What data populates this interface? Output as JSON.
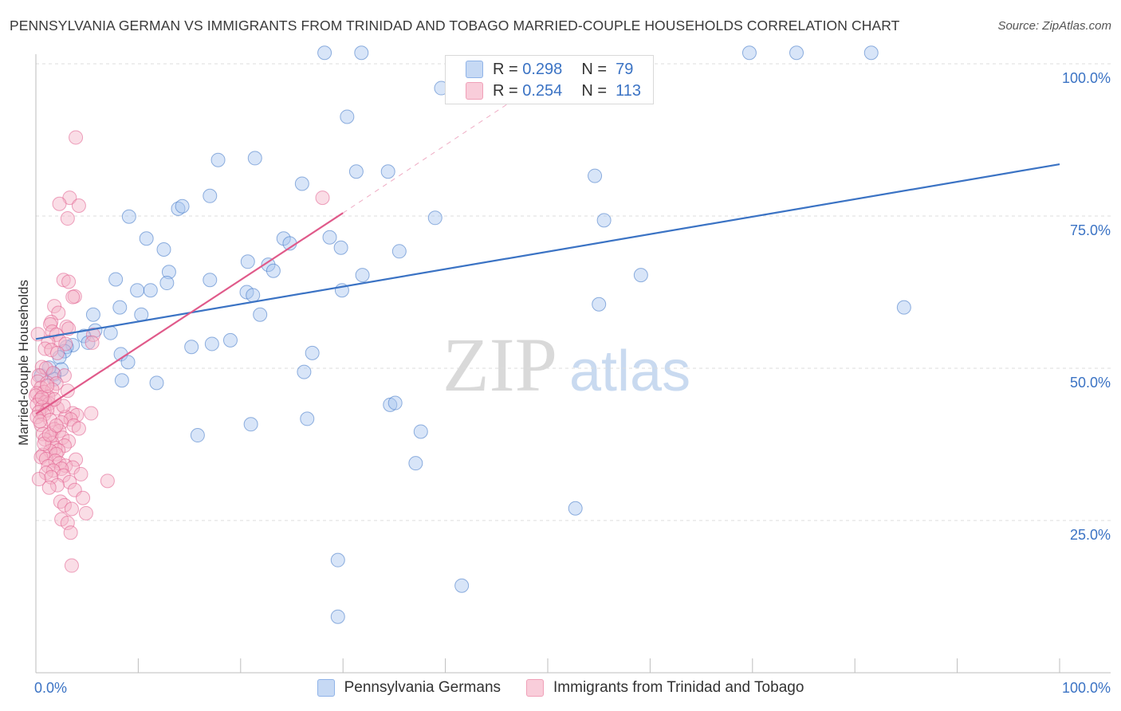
{
  "header": {
    "title": "PENNSYLVANIA GERMAN VS IMMIGRANTS FROM TRINIDAD AND TOBAGO MARRIED-COUPLE HOUSEHOLDS CORRELATION CHART",
    "source": "Source: ZipAtlas.com"
  },
  "watermark": {
    "part1": "ZIP",
    "part2": "atlas"
  },
  "legend": {
    "rows": [
      {
        "r_label": "R =",
        "r_value": "0.298",
        "n_label": "N =",
        "n_value": "79",
        "color": "#8fb3e8"
      },
      {
        "r_label": "R =",
        "r_value": "0.254",
        "n_label": "N =",
        "n_value": "113",
        "color": "#f0a0b8"
      }
    ]
  },
  "bottom_legend": {
    "items": [
      {
        "label": "Pennsylvania Germans",
        "color": "#8fb3e8"
      },
      {
        "label": "Immigrants from Trinidad and Tobago",
        "color": "#f0a0b8"
      }
    ]
  },
  "chart_data": {
    "type": "scatter",
    "title": "PENNSYLVANIA GERMAN VS IMMIGRANTS FROM TRINIDAD AND TOBAGO MARRIED-COUPLE HOUSEHOLDS CORRELATION CHART",
    "xlabel": "",
    "ylabel": "Married-couple Households",
    "xlim": [
      0,
      100
    ],
    "ylim": [
      0,
      100
    ],
    "x_tick_labels": [
      "0.0%",
      "100.0%"
    ],
    "y_tick_labels": [
      "100.0%",
      "75.0%",
      "50.0%",
      "25.0%"
    ],
    "y_tick_values": [
      100,
      75,
      50,
      25
    ],
    "grid": true,
    "series": [
      {
        "name": "Pennsylvania Germans",
        "color": "#3b73c4",
        "fill": "#a9c6ef",
        "trend": {
          "x0": 0,
          "y0": 54.8,
          "x1": 100,
          "y1": 83.5
        },
        "points": [
          [
            28.2,
            101.8
          ],
          [
            31.8,
            101.8
          ],
          [
            69.7,
            101.8
          ],
          [
            74.3,
            101.8
          ],
          [
            81.6,
            101.8
          ],
          [
            30.4,
            91.3
          ],
          [
            17.8,
            84.2
          ],
          [
            21.4,
            84.5
          ],
          [
            31.3,
            82.3
          ],
          [
            34.4,
            82.3
          ],
          [
            26.0,
            80.3
          ],
          [
            54.6,
            81.6
          ],
          [
            17.0,
            78.3
          ],
          [
            13.9,
            76.2
          ],
          [
            14.3,
            76.6
          ],
          [
            9.1,
            74.9
          ],
          [
            39.0,
            74.7
          ],
          [
            55.5,
            74.3
          ],
          [
            10.8,
            71.3
          ],
          [
            28.7,
            71.5
          ],
          [
            24.2,
            71.3
          ],
          [
            24.8,
            70.5
          ],
          [
            12.5,
            69.5
          ],
          [
            29.8,
            69.8
          ],
          [
            35.5,
            69.2
          ],
          [
            20.7,
            67.5
          ],
          [
            22.7,
            67.0
          ],
          [
            13.0,
            65.8
          ],
          [
            23.2,
            66.0
          ],
          [
            31.9,
            65.3
          ],
          [
            7.8,
            64.6
          ],
          [
            17.0,
            64.5
          ],
          [
            12.8,
            64.0
          ],
          [
            9.9,
            62.8
          ],
          [
            11.2,
            62.8
          ],
          [
            29.9,
            62.8
          ],
          [
            20.6,
            62.5
          ],
          [
            21.2,
            62.0
          ],
          [
            59.1,
            65.3
          ],
          [
            55.0,
            60.5
          ],
          [
            8.2,
            60.0
          ],
          [
            84.8,
            60.0
          ],
          [
            5.6,
            58.8
          ],
          [
            10.3,
            58.8
          ],
          [
            21.9,
            58.8
          ],
          [
            5.8,
            56.2
          ],
          [
            7.3,
            55.8
          ],
          [
            4.7,
            55.3
          ],
          [
            5.1,
            54.2
          ],
          [
            3.6,
            53.8
          ],
          [
            19.0,
            54.6
          ],
          [
            3.0,
            53.5
          ],
          [
            2.8,
            52.8
          ],
          [
            15.2,
            53.5
          ],
          [
            17.2,
            54.0
          ],
          [
            2.3,
            51.8
          ],
          [
            8.3,
            52.3
          ],
          [
            27.0,
            52.5
          ],
          [
            9.0,
            51.0
          ],
          [
            26.2,
            49.4
          ],
          [
            2.5,
            49.8
          ],
          [
            1.8,
            49.0
          ],
          [
            0.5,
            48.8
          ],
          [
            1.8,
            48.2
          ],
          [
            11.8,
            47.6
          ],
          [
            34.6,
            44.0
          ],
          [
            35.1,
            44.3
          ],
          [
            15.8,
            39.0
          ],
          [
            21.0,
            40.8
          ],
          [
            37.6,
            39.6
          ],
          [
            37.1,
            34.4
          ],
          [
            52.7,
            27.0
          ],
          [
            29.5,
            18.5
          ],
          [
            41.6,
            14.3
          ],
          [
            29.5,
            9.2
          ],
          [
            39.6,
            96.0
          ],
          [
            26.5,
            41.7
          ],
          [
            8.4,
            48.0
          ],
          [
            1.3,
            50.1
          ]
        ]
      },
      {
        "name": "Immigrants from Trinidad and Tobago",
        "color": "#e05a8a",
        "fill": "#f5b3c8",
        "trend": {
          "x0": 0,
          "y0": 42.5,
          "x1": 30,
          "y1": 75.5
        },
        "trend_ext": {
          "x0": 30,
          "y0": 75.5,
          "x1": 52,
          "y1": 100
        },
        "points": [
          [
            3.9,
            87.9
          ],
          [
            3.3,
            78.0
          ],
          [
            2.3,
            77.0
          ],
          [
            4.2,
            76.7
          ],
          [
            3.1,
            74.6
          ],
          [
            28.0,
            78.0
          ],
          [
            2.7,
            64.5
          ],
          [
            3.2,
            64.2
          ],
          [
            3.8,
            61.8
          ],
          [
            3.6,
            61.7
          ],
          [
            1.8,
            60.2
          ],
          [
            2.2,
            59.1
          ],
          [
            3.0,
            56.8
          ],
          [
            1.5,
            57.6
          ],
          [
            1.4,
            57.2
          ],
          [
            3.2,
            56.5
          ],
          [
            1.6,
            56.0
          ],
          [
            0.2,
            55.6
          ],
          [
            2.0,
            55.5
          ],
          [
            5.6,
            55.5
          ],
          [
            2.3,
            54.5
          ],
          [
            1.2,
            54.3
          ],
          [
            2.9,
            54.0
          ],
          [
            5.5,
            54.2
          ],
          [
            0.9,
            53.2
          ],
          [
            1.5,
            53.0
          ],
          [
            2.1,
            52.5
          ],
          [
            0.6,
            50.2
          ],
          [
            1.0,
            50.0
          ],
          [
            1.7,
            49.2
          ],
          [
            0.3,
            48.8
          ],
          [
            2.8,
            48.8
          ],
          [
            0.2,
            47.8
          ],
          [
            1.1,
            47.6
          ],
          [
            2.0,
            47.5
          ],
          [
            0.5,
            46.8
          ],
          [
            1.6,
            46.5
          ],
          [
            0.8,
            46.1
          ],
          [
            0.1,
            45.9
          ],
          [
            0.0,
            45.5
          ],
          [
            1.2,
            45.3
          ],
          [
            0.4,
            44.8
          ],
          [
            0.9,
            44.4
          ],
          [
            1.3,
            44.2
          ],
          [
            0.1,
            44.0
          ],
          [
            0.6,
            43.6
          ],
          [
            2.1,
            43.4
          ],
          [
            1.1,
            43.1
          ],
          [
            0.3,
            42.8
          ],
          [
            3.6,
            42.6
          ],
          [
            5.4,
            42.6
          ],
          [
            0.8,
            42.4
          ],
          [
            4.0,
            42.3
          ],
          [
            0.1,
            42.0
          ],
          [
            2.9,
            42.0
          ],
          [
            3.4,
            41.6
          ],
          [
            1.4,
            41.5
          ],
          [
            2.5,
            41.1
          ],
          [
            0.5,
            40.7
          ],
          [
            3.7,
            40.6
          ],
          [
            1.8,
            40.0
          ],
          [
            4.2,
            40.1
          ],
          [
            2.3,
            39.7
          ],
          [
            0.7,
            39.2
          ],
          [
            1.5,
            38.8
          ],
          [
            2.6,
            38.6
          ],
          [
            0.9,
            38.3
          ],
          [
            3.2,
            38.0
          ],
          [
            1.6,
            37.7
          ],
          [
            2.8,
            37.3
          ],
          [
            1.9,
            36.9
          ],
          [
            2.2,
            36.5
          ],
          [
            1.4,
            36.4
          ],
          [
            2.0,
            35.9
          ],
          [
            0.7,
            35.8
          ],
          [
            0.5,
            35.4
          ],
          [
            1.0,
            35.1
          ],
          [
            3.9,
            35.0
          ],
          [
            1.9,
            34.8
          ],
          [
            2.3,
            34.4
          ],
          [
            2.9,
            34.0
          ],
          [
            1.2,
            33.9
          ],
          [
            3.6,
            33.7
          ],
          [
            2.5,
            33.5
          ],
          [
            1.7,
            33.2
          ],
          [
            1.0,
            32.8
          ],
          [
            4.4,
            32.6
          ],
          [
            2.7,
            32.4
          ],
          [
            1.5,
            32.1
          ],
          [
            0.3,
            31.8
          ],
          [
            3.3,
            31.3
          ],
          [
            2.1,
            30.8
          ],
          [
            7.0,
            31.5
          ],
          [
            1.3,
            30.4
          ],
          [
            3.8,
            30.0
          ],
          [
            4.6,
            28.7
          ],
          [
            2.4,
            28.1
          ],
          [
            2.8,
            27.5
          ],
          [
            3.5,
            26.9
          ],
          [
            4.9,
            26.2
          ],
          [
            2.5,
            25.2
          ],
          [
            3.1,
            24.6
          ],
          [
            3.4,
            23.0
          ],
          [
            3.5,
            17.6
          ],
          [
            0.8,
            37.6
          ],
          [
            1.3,
            39.1
          ],
          [
            2.0,
            40.6
          ],
          [
            0.4,
            41.3
          ],
          [
            2.7,
            43.8
          ],
          [
            1.8,
            44.9
          ],
          [
            0.6,
            45.2
          ],
          [
            3.1,
            46.3
          ],
          [
            1.1,
            47.1
          ]
        ]
      }
    ]
  }
}
